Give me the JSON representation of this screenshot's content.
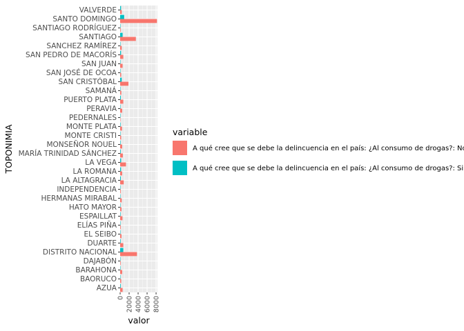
{
  "chart_data": {
    "type": "bar",
    "orientation": "horizontal",
    "xlabel": "valor",
    "ylabel": "TOPONIMIA",
    "xlim": [
      0,
      8300
    ],
    "xticks": [
      0,
      2000,
      4000,
      6000,
      8000
    ],
    "grid": true,
    "legend_title": "variable",
    "legend_position": "right",
    "categories": [
      "VALVERDE",
      "SANTO DOMINGO",
      "SANTIAGO RODRÍGUEZ",
      "SANTIAGO",
      "SANCHEZ RAMÍREZ",
      "SAN PEDRO DE MACORÍS",
      "SAN JUAN",
      "SAN JOSÉ DE OCOA",
      "SAN CRISTÓBAL",
      "SAMANÁ",
      "PUERTO PLATA",
      "PERAVIA",
      "PEDERNALES",
      "MONTE PLATA",
      "MONTE CRISTI",
      "MONSEÑOR NOUEL",
      "MARÍA TRINIDAD SÁNCHEZ",
      "LA VEGA",
      "LA ROMANA",
      "LA ALTAGRACIA",
      "INDEPENDENCIA",
      "HERMANAS MIRABAL",
      "HATO MAYOR",
      "ESPAILLAT",
      "ELÍAS PIÑA",
      "EL SEIBO",
      "DUARTE",
      "DISTRITO NACIONAL",
      "DAJABÓN",
      "BARAHONA",
      "BAORUCO",
      "AZUA"
    ],
    "series": [
      {
        "name": "A qué cree que se debe la delincuencia en el país: ¿Al consumo de drogas?: No",
        "color": "#F8766D",
        "values": [
          350,
          8200,
          120,
          3500,
          350,
          700,
          550,
          230,
          1850,
          260,
          700,
          450,
          60,
          420,
          220,
          450,
          600,
          1300,
          450,
          800,
          130,
          350,
          300,
          520,
          130,
          300,
          700,
          3750,
          120,
          450,
          230,
          550
        ]
      },
      {
        "name": "A qué cree que se debe la delincuencia en el país: ¿Al consumo de drogas?: Si",
        "color": "#00BFC4",
        "values": [
          200,
          900,
          30,
          550,
          60,
          200,
          80,
          40,
          350,
          40,
          150,
          80,
          10,
          100,
          50,
          100,
          130,
          220,
          200,
          150,
          20,
          70,
          50,
          100,
          20,
          40,
          120,
          700,
          20,
          70,
          40,
          130
        ]
      }
    ]
  }
}
